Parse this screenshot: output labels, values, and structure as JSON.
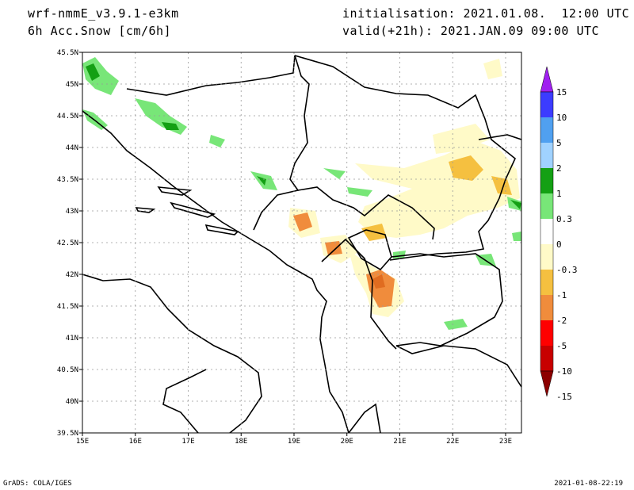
{
  "header": {
    "model": "wrf-nmmE_v3.9.1-e3km",
    "field": "6h Acc.Snow [cm/6h]",
    "init": "initialisation: 2021.01.08.  12:00 UTC",
    "valid": "valid(+21h): 2021.JAN.09 09:00 UTC"
  },
  "map": {
    "lon_range": [
      15,
      23.3
    ],
    "lat_range": [
      39.5,
      45.5
    ],
    "lon_ticks": [
      15,
      16,
      17,
      18,
      19,
      20,
      21,
      22,
      23
    ],
    "lon_tick_labels": [
      "15E",
      "16E",
      "17E",
      "18E",
      "19E",
      "20E",
      "21E",
      "22E",
      "23E"
    ],
    "lat_ticks": [
      45.5,
      45,
      44.5,
      44,
      43.5,
      43,
      42.5,
      42,
      41.5,
      41,
      40.5,
      40,
      39.5
    ],
    "lat_tick_labels": [
      "45.5N",
      "45N",
      "44.5N",
      "44N",
      "43.5N",
      "43N",
      "42.5N",
      "42N",
      "41.5N",
      "41N",
      "40.5N",
      "40N",
      "39.5N"
    ],
    "grid": true
  },
  "colorbar": {
    "labels": [
      "15",
      "10",
      "5",
      "2",
      "1",
      "0.3",
      "0",
      "-0.3",
      "-1",
      "-2",
      "-5",
      "-10",
      "-15"
    ],
    "colors": [
      "#a020f0",
      "#3c3cff",
      "#50a0f0",
      "#a0d2ff",
      "#14a014",
      "#78e678",
      "#ffffff",
      "#fffac8",
      "#f5c040",
      "#f08c3c",
      "#ff0000",
      "#c80000",
      "#8c0000"
    ]
  },
  "footer": {
    "credit": "GrADS: COLA/IGES",
    "stamp": "2021-01-08-22:19"
  }
}
